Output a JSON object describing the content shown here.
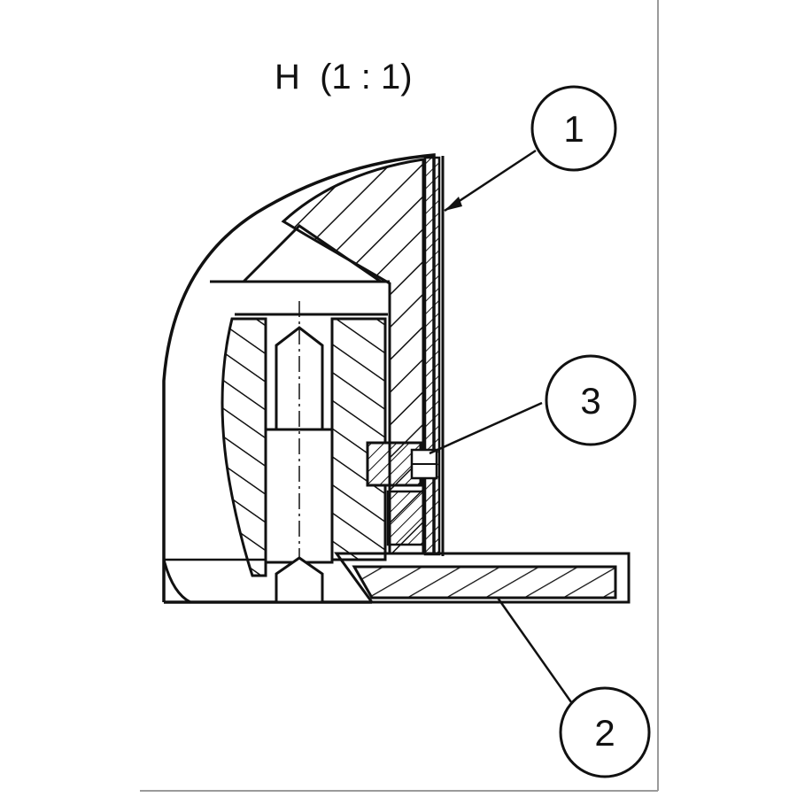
{
  "view_title": "H  (1 : 1)",
  "balloons": [
    {
      "label": "1"
    },
    {
      "label": "3"
    },
    {
      "label": "2"
    }
  ],
  "colors": {
    "line": "#111111",
    "frame": "#9a9a9a",
    "background": "#ffffff"
  }
}
